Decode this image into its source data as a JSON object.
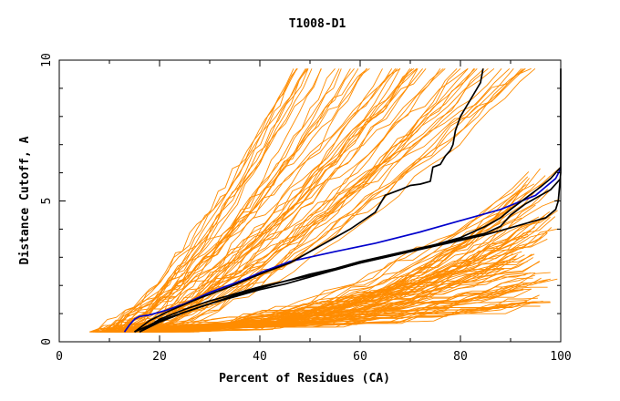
{
  "chart_data": {
    "type": "line",
    "title": "T1008-D1",
    "xlabel": "Percent of Residues (CA)",
    "ylabel": "Distance Cutoff, A",
    "xlim": [
      0,
      100
    ],
    "ylim": [
      0,
      10
    ],
    "x_ticks": [
      0,
      20,
      40,
      60,
      80,
      100
    ],
    "x_tick_labels": [
      "0",
      "20",
      "40",
      "60",
      "80",
      "100"
    ],
    "y_ticks": [
      0,
      5,
      10
    ],
    "y_tick_labels": [
      "0",
      "5",
      "10"
    ],
    "grid": false,
    "legend": "none",
    "colors": {
      "background_series": "#ff8c00",
      "highlight_black": "#000000",
      "highlight_blue": "#0000cc",
      "axes": "#000000"
    },
    "background_series_count": 140,
    "series": [
      {
        "color": "#0000cc",
        "x": [
          13,
          14,
          15,
          16,
          18,
          21,
          25,
          30,
          36,
          40,
          46,
          55,
          63,
          72,
          80,
          88,
          95,
          97,
          99,
          100
        ],
        "y": [
          0.35,
          0.6,
          0.8,
          0.9,
          0.95,
          1.1,
          1.35,
          1.75,
          2.15,
          2.45,
          2.85,
          3.2,
          3.5,
          3.9,
          4.3,
          4.7,
          5.2,
          5.5,
          5.8,
          6.15
        ]
      },
      {
        "color": "#000000",
        "x": [
          15,
          18,
          22,
          28,
          34,
          40,
          46,
          52,
          58,
          63,
          65,
          68,
          70,
          72,
          74,
          74.5,
          76,
          77,
          78,
          78.5,
          79,
          80,
          81,
          82,
          83,
          84,
          84.5
        ],
        "y": [
          0.35,
          0.75,
          1.1,
          1.55,
          1.95,
          2.4,
          2.8,
          3.4,
          4.0,
          4.6,
          5.2,
          5.4,
          5.55,
          5.6,
          5.7,
          6.2,
          6.3,
          6.6,
          6.8,
          7.0,
          7.5,
          8.0,
          8.3,
          8.6,
          8.9,
          9.2,
          9.7
        ]
      },
      {
        "color": "#000000",
        "x": [
          16,
          20,
          25,
          30,
          35,
          40,
          45,
          50,
          55,
          60,
          65,
          70,
          75,
          80,
          85,
          88,
          90,
          93,
          96,
          98,
          99,
          100
        ],
        "y": [
          0.35,
          0.8,
          1.15,
          1.45,
          1.7,
          1.95,
          2.15,
          2.35,
          2.55,
          2.8,
          3.0,
          3.2,
          3.45,
          3.7,
          4.1,
          4.4,
          4.7,
          5.1,
          5.5,
          5.8,
          6.0,
          6.2
        ]
      },
      {
        "color": "#000000",
        "x": [
          16,
          20,
          25,
          30,
          35,
          40,
          45,
          50,
          55,
          60,
          65,
          70,
          75,
          80,
          85,
          90,
          95,
          97,
          99,
          99.5,
          100,
          100,
          100
        ],
        "y": [
          0.35,
          0.7,
          1.05,
          1.35,
          1.6,
          1.85,
          2.05,
          2.3,
          2.55,
          2.8,
          3.0,
          3.2,
          3.4,
          3.6,
          3.8,
          4.05,
          4.3,
          4.4,
          4.7,
          5.0,
          6.0,
          8.0,
          9.7
        ]
      },
      {
        "color": "#000000",
        "x": [
          15,
          20,
          25,
          30,
          35,
          40,
          45,
          50,
          55,
          60,
          65,
          70,
          75,
          80,
          85,
          88,
          90,
          93,
          96,
          98,
          100
        ],
        "y": [
          0.35,
          0.75,
          1.05,
          1.35,
          1.65,
          1.9,
          2.15,
          2.4,
          2.6,
          2.85,
          3.05,
          3.25,
          3.45,
          3.65,
          3.85,
          4.1,
          4.5,
          4.9,
          5.2,
          5.4,
          5.8
        ]
      }
    ]
  }
}
